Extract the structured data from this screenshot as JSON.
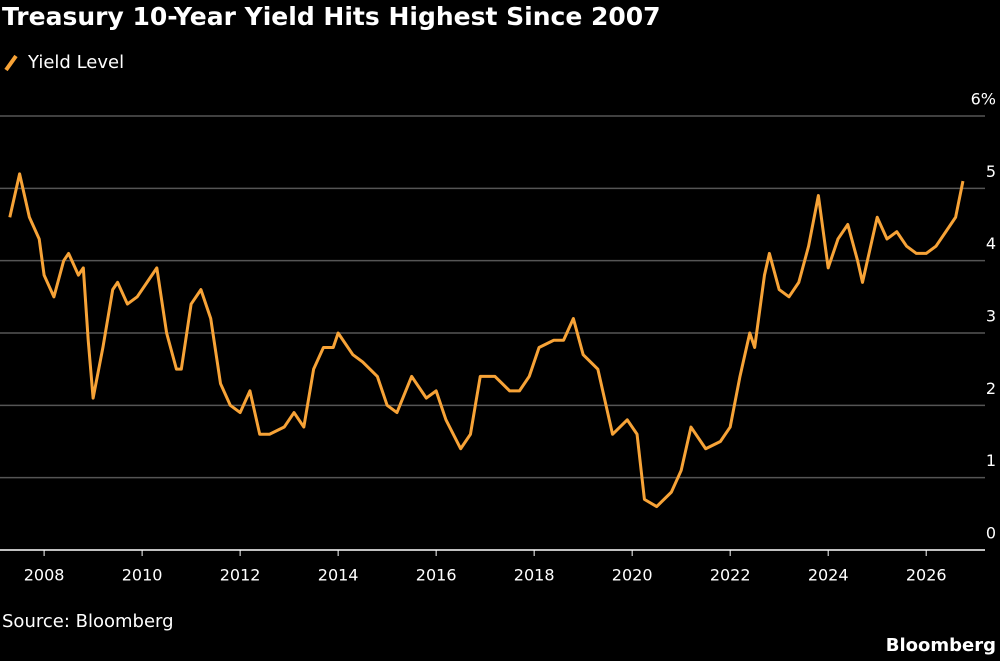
{
  "chart_data": {
    "type": "line",
    "title": "Treasury 10-Year Yield Hits Highest Since 2007",
    "source": "Source: Bloomberg",
    "brand": "Bloomberg",
    "xlim": [
      2007.1,
      2027.2
    ],
    "xticks": [
      2008,
      2010,
      2012,
      2014,
      2016,
      2018,
      2020,
      2022,
      2024,
      2026
    ],
    "ylim": [
      0,
      6
    ],
    "yticks": [
      0,
      1,
      2,
      3,
      4,
      5,
      {
        "value": 6,
        "label": "6%"
      }
    ],
    "grid": true,
    "legend": "top-left",
    "series": [
      {
        "name": "Yield Level",
        "color": "#f7a337",
        "x": [
          2007.3,
          2007.5,
          2007.7,
          2007.9,
          2008.0,
          2008.2,
          2008.4,
          2008.5,
          2008.7,
          2008.8,
          2008.9,
          2009.0,
          2009.2,
          2009.4,
          2009.5,
          2009.7,
          2009.9,
          2010.1,
          2010.3,
          2010.5,
          2010.7,
          2010.8,
          2011.0,
          2011.2,
          2011.4,
          2011.6,
          2011.8,
          2012.0,
          2012.2,
          2012.4,
          2012.6,
          2012.9,
          2013.1,
          2013.3,
          2013.5,
          2013.7,
          2013.9,
          2014.0,
          2014.3,
          2014.5,
          2014.8,
          2015.0,
          2015.2,
          2015.5,
          2015.8,
          2016.0,
          2016.2,
          2016.5,
          2016.7,
          2016.9,
          2017.2,
          2017.5,
          2017.7,
          2017.9,
          2018.1,
          2018.4,
          2018.6,
          2018.8,
          2019.0,
          2019.3,
          2019.6,
          2019.9,
          2020.1,
          2020.25,
          2020.5,
          2020.8,
          2021.0,
          2021.2,
          2021.5,
          2021.8,
          2022.0,
          2022.2,
          2022.4,
          2022.5,
          2022.7,
          2022.8,
          2023.0,
          2023.2,
          2023.4,
          2023.6,
          2023.8,
          2024.0,
          2024.2,
          2024.4,
          2024.6,
          2024.7,
          2024.9,
          2025.0,
          2025.2,
          2025.4,
          2025.6,
          2025.8,
          2026.0,
          2026.2,
          2026.4,
          2026.6,
          2026.75
        ],
        "values": [
          4.6,
          5.2,
          4.6,
          4.3,
          3.8,
          3.5,
          4.0,
          4.1,
          3.8,
          3.9,
          2.9,
          2.1,
          2.8,
          3.6,
          3.7,
          3.4,
          3.5,
          3.7,
          3.9,
          3.0,
          2.5,
          2.5,
          3.4,
          3.6,
          3.2,
          2.3,
          2.0,
          1.9,
          2.2,
          1.6,
          1.6,
          1.7,
          1.9,
          1.7,
          2.5,
          2.8,
          2.8,
          3.0,
          2.7,
          2.6,
          2.4,
          2.0,
          1.9,
          2.4,
          2.1,
          2.2,
          1.8,
          1.4,
          1.6,
          2.4,
          2.4,
          2.2,
          2.2,
          2.4,
          2.8,
          2.9,
          2.9,
          3.2,
          2.7,
          2.5,
          1.6,
          1.8,
          1.6,
          0.7,
          0.6,
          0.8,
          1.1,
          1.7,
          1.4,
          1.5,
          1.7,
          2.4,
          3.0,
          2.8,
          3.8,
          4.1,
          3.6,
          3.5,
          3.7,
          4.2,
          4.9,
          3.9,
          4.3,
          4.5,
          4.0,
          3.7,
          4.3,
          4.6,
          4.3,
          4.4,
          4.2,
          4.1,
          4.1,
          4.2,
          4.4,
          4.6,
          5.1
        ]
      }
    ]
  }
}
